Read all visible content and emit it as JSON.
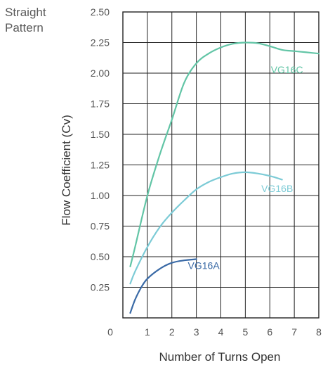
{
  "corner_note": {
    "line1": "Straight",
    "line2": "Pattern"
  },
  "chart_data": {
    "type": "line",
    "xlabel": "Number of Turns Open",
    "ylabel": "Flow Coefficient (Cv)",
    "xlim": [
      0,
      8
    ],
    "ylim": [
      0,
      2.5
    ],
    "x_ticks": [
      0,
      1,
      2,
      3,
      4,
      5,
      6,
      7,
      8
    ],
    "y_ticks": [
      0.25,
      0.5,
      0.75,
      1.0,
      1.25,
      1.5,
      1.75,
      2.0,
      2.25,
      2.5
    ],
    "x_tick_labels": [
      "0",
      "1",
      "2",
      "3",
      "4",
      "5",
      "6",
      "7",
      "8"
    ],
    "y_tick_labels": [
      "0.25",
      "0.50",
      "0.75",
      "1.00",
      "1.25",
      "1.50",
      "1.75",
      "2.00",
      "2.25",
      "2.50"
    ],
    "grid": true,
    "series": [
      {
        "name": "VG16A",
        "color": "#3a6aa6",
        "label_at": [
          3.3,
          0.4
        ],
        "points": [
          [
            0.3,
            0.04
          ],
          [
            0.5,
            0.15
          ],
          [
            0.75,
            0.25
          ],
          [
            1.0,
            0.32
          ],
          [
            1.5,
            0.4
          ],
          [
            2.0,
            0.45
          ],
          [
            2.5,
            0.47
          ],
          [
            3.0,
            0.48
          ]
        ]
      },
      {
        "name": "VG16B",
        "color": "#7ccbd6",
        "label_at": [
          6.3,
          1.03
        ],
        "points": [
          [
            0.3,
            0.28
          ],
          [
            0.5,
            0.38
          ],
          [
            1.0,
            0.58
          ],
          [
            1.5,
            0.74
          ],
          [
            2.0,
            0.86
          ],
          [
            2.5,
            0.96
          ],
          [
            3.0,
            1.05
          ],
          [
            3.5,
            1.11
          ],
          [
            4.0,
            1.15
          ],
          [
            4.5,
            1.18
          ],
          [
            5.0,
            1.19
          ],
          [
            5.5,
            1.18
          ],
          [
            6.0,
            1.16
          ],
          [
            6.5,
            1.13
          ]
        ]
      },
      {
        "name": "VG16C",
        "color": "#62c5a6",
        "label_at": [
          6.7,
          2.0
        ],
        "points": [
          [
            0.3,
            0.42
          ],
          [
            0.5,
            0.58
          ],
          [
            1.0,
            1.0
          ],
          [
            1.5,
            1.33
          ],
          [
            2.0,
            1.62
          ],
          [
            2.5,
            1.92
          ],
          [
            3.0,
            2.08
          ],
          [
            3.5,
            2.16
          ],
          [
            4.0,
            2.21
          ],
          [
            4.5,
            2.24
          ],
          [
            5.0,
            2.25
          ],
          [
            5.5,
            2.245
          ],
          [
            6.0,
            2.22
          ],
          [
            6.5,
            2.19
          ],
          [
            7.0,
            2.18
          ],
          [
            7.5,
            2.17
          ],
          [
            8.0,
            2.16
          ]
        ]
      }
    ]
  }
}
